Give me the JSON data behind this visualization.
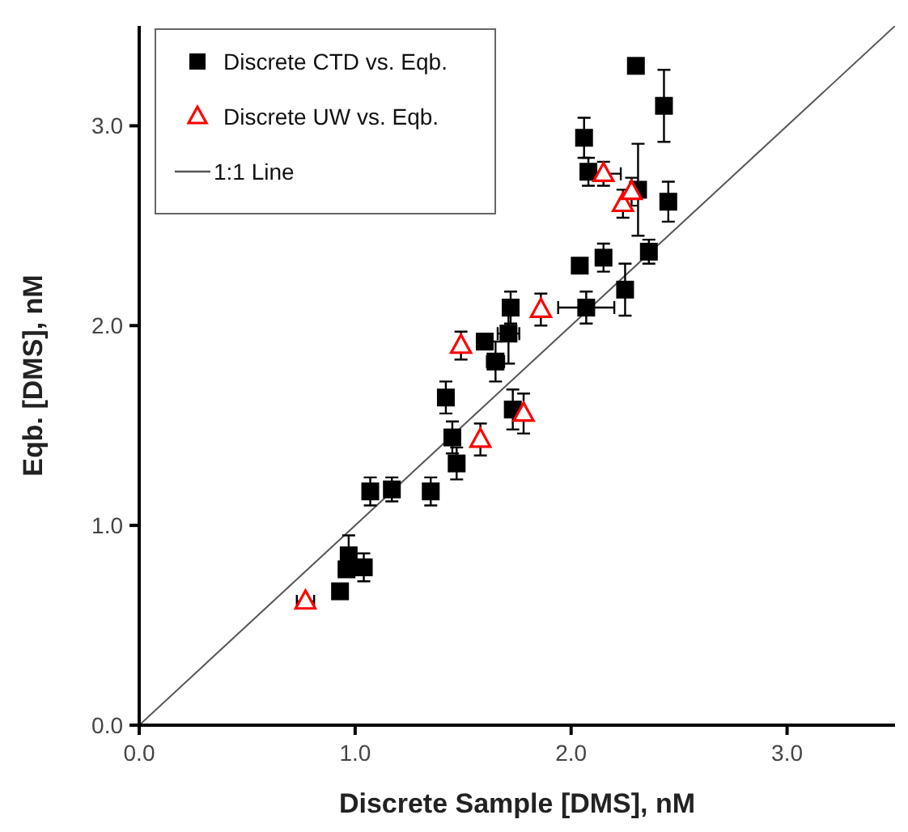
{
  "chart_data": {
    "type": "scatter",
    "xlabel": "Discrete Sample [DMS], nM",
    "ylabel": "Eqb. [DMS], nM",
    "xlim": [
      0,
      3.5
    ],
    "ylim": [
      0,
      3.5
    ],
    "xticks": [
      {
        "value": 0,
        "label": "0.0"
      },
      {
        "value": 1,
        "label": "1.0"
      },
      {
        "value": 2,
        "label": "2.0"
      },
      {
        "value": 3,
        "label": "3.0"
      }
    ],
    "yticks": [
      {
        "value": 0,
        "label": "0.0"
      },
      {
        "value": 1,
        "label": "1.0"
      },
      {
        "value": 2,
        "label": "2.0"
      },
      {
        "value": 3,
        "label": "3.0"
      }
    ],
    "grid": false,
    "legend": "top left",
    "series": [
      {
        "name": "Discrete CTD vs. Eqb.",
        "marker": "square",
        "color": "#000000",
        "x": [
          2.3,
          2.43,
          2.06,
          2.08,
          2.31,
          2.45,
          2.36,
          2.15,
          2.04,
          2.25,
          2.07,
          1.72,
          1.71,
          1.6,
          1.65,
          1.73,
          1.42,
          1.45,
          1.47,
          1.35,
          1.17,
          1.07,
          0.97,
          0.96,
          1.04,
          0.93
        ],
        "values": [
          3.3,
          3.1,
          2.94,
          2.77,
          2.68,
          2.62,
          2.37,
          2.34,
          2.3,
          2.18,
          2.09,
          2.09,
          1.96,
          1.92,
          1.82,
          1.58,
          1.64,
          1.44,
          1.31,
          1.17,
          1.18,
          1.17,
          0.85,
          0.78,
          0.79,
          0.67
        ],
        "errors": [
          null,
          0.18,
          0.1,
          0.07,
          0.23,
          0.1,
          0.06,
          0.07,
          null,
          0.13,
          0.08,
          0.08,
          0.15,
          null,
          0.1,
          0.1,
          0.08,
          0.08,
          0.08,
          0.07,
          0.06,
          0.07,
          0.1,
          null,
          0.07,
          null
        ],
        "xerrors": [
          null,
          null,
          null,
          null,
          null,
          null,
          null,
          null,
          null,
          null,
          0.13,
          null,
          0.05,
          null,
          0.04,
          null,
          null,
          null,
          null,
          null,
          null,
          null,
          null,
          null,
          null,
          null
        ]
      },
      {
        "name": "Discrete UW vs. Eqb.",
        "marker": "triangle",
        "color": "#ff0000",
        "x": [
          0.77,
          1.58,
          1.78,
          1.49,
          1.86,
          2.15,
          2.24,
          2.28
        ],
        "values": [
          0.62,
          1.43,
          1.56,
          1.9,
          2.08,
          2.76,
          2.61,
          2.67
        ],
        "errors": [
          null,
          0.08,
          0.1,
          0.07,
          0.08,
          0.06,
          0.07,
          0.07
        ],
        "xerrors": [
          0.04,
          null,
          null,
          null,
          null,
          0.08,
          null,
          null
        ]
      },
      {
        "name": "1:1 Line",
        "type": "line",
        "color": "#555555",
        "line_style": "solid",
        "x": [
          0,
          3.5
        ],
        "values": [
          0,
          3.5
        ]
      }
    ]
  }
}
